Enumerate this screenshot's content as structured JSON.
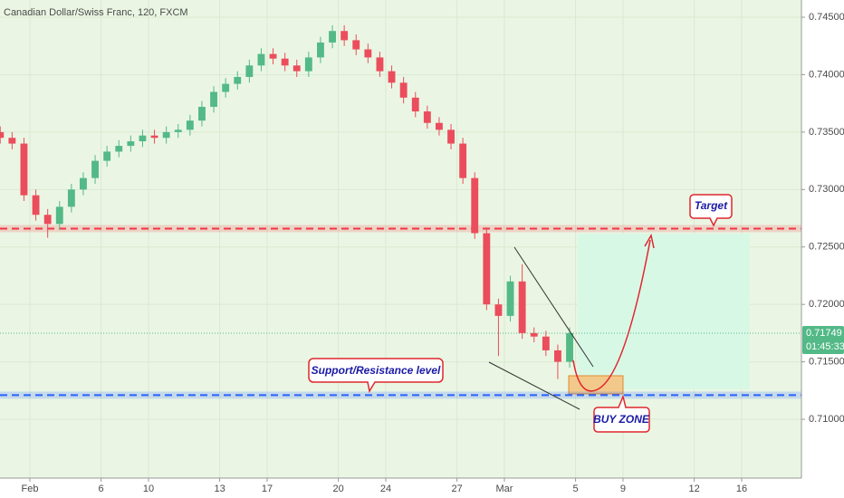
{
  "chart_data": {
    "type": "candlestick",
    "title": "Canadian Dollar/Swiss Franc, 120, FXCM",
    "x": [
      -1.25,
      -0.75,
      -0.25,
      0.25,
      0.75,
      1.25,
      1.75,
      2.25,
      2.75,
      3.25,
      3.75,
      4.25,
      4.75,
      5.25,
      5.75,
      6.25,
      6.75,
      7.25,
      7.75,
      8.25,
      8.75,
      9.25,
      9.75,
      10.25,
      10.75,
      11.25,
      11.75,
      12.25,
      12.75,
      13.25,
      13.75,
      14.25,
      14.75,
      15.25,
      15.75,
      16.25,
      16.75,
      17.25,
      17.75,
      18.25,
      18.75,
      19.25,
      19.75,
      20.25,
      20.75,
      21.25,
      21.75,
      22.25,
      22.75
    ],
    "open": [
      0.735,
      0.7345,
      0.734,
      0.7295,
      0.7278,
      0.727,
      0.7285,
      0.73,
      0.731,
      0.7325,
      0.7333,
      0.7338,
      0.7342,
      0.7347,
      0.7345,
      0.735,
      0.7352,
      0.736,
      0.7372,
      0.7385,
      0.7392,
      0.7398,
      0.7408,
      0.7418,
      0.7414,
      0.7408,
      0.7403,
      0.7415,
      0.7428,
      0.7438,
      0.743,
      0.7422,
      0.7415,
      0.7403,
      0.7393,
      0.738,
      0.7368,
      0.7358,
      0.7352,
      0.734,
      0.731,
      0.7262,
      0.72,
      0.719,
      0.722,
      0.7175,
      0.7172,
      0.716,
      0.715
    ],
    "high": [
      0.7355,
      0.735,
      0.7345,
      0.73,
      0.7283,
      0.729,
      0.7305,
      0.7315,
      0.733,
      0.7338,
      0.7343,
      0.7347,
      0.7352,
      0.7352,
      0.7355,
      0.7357,
      0.7365,
      0.7377,
      0.739,
      0.7397,
      0.7403,
      0.7413,
      0.7423,
      0.7423,
      0.7419,
      0.7413,
      0.742,
      0.7433,
      0.7443,
      0.7443,
      0.7435,
      0.7427,
      0.742,
      0.7408,
      0.7398,
      0.7385,
      0.7373,
      0.7363,
      0.7357,
      0.7345,
      0.7315,
      0.7267,
      0.7205,
      0.7225,
      0.7235,
      0.718,
      0.7177,
      0.7165,
      0.718
    ],
    "low": [
      0.734,
      0.7335,
      0.729,
      0.7273,
      0.7258,
      0.7265,
      0.728,
      0.7295,
      0.7305,
      0.732,
      0.7328,
      0.7333,
      0.7337,
      0.734,
      0.734,
      0.7345,
      0.7347,
      0.7355,
      0.7367,
      0.738,
      0.7387,
      0.7393,
      0.7403,
      0.7409,
      0.7403,
      0.7398,
      0.7398,
      0.741,
      0.7423,
      0.7425,
      0.7417,
      0.741,
      0.7398,
      0.7388,
      0.7375,
      0.7363,
      0.7353,
      0.7347,
      0.7335,
      0.7305,
      0.7257,
      0.7195,
      0.7155,
      0.7185,
      0.717,
      0.7167,
      0.7155,
      0.7135,
      0.7145
    ],
    "close": [
      0.7345,
      0.734,
      0.7295,
      0.7278,
      0.727,
      0.7285,
      0.73,
      0.731,
      0.7325,
      0.7333,
      0.7338,
      0.7342,
      0.7347,
      0.7345,
      0.735,
      0.7352,
      0.736,
      0.7372,
      0.7385,
      0.7392,
      0.7398,
      0.7408,
      0.7418,
      0.7414,
      0.7408,
      0.7403,
      0.7415,
      0.7428,
      0.7438,
      0.743,
      0.7422,
      0.7415,
      0.7403,
      0.7393,
      0.738,
      0.7368,
      0.7358,
      0.7352,
      0.734,
      0.731,
      0.7262,
      0.72,
      0.719,
      0.722,
      0.7175,
      0.7172,
      0.716,
      0.715,
      0.7175
    ],
    "up_color": "#53b987",
    "down_color": "#eb4d5c",
    "xlim": [
      -1.26,
      32.52
    ],
    "xticks": [
      {
        "value": 0,
        "label": "Feb"
      },
      {
        "value": 3,
        "label": "6"
      },
      {
        "value": 5,
        "label": "10"
      },
      {
        "value": 8,
        "label": "13"
      },
      {
        "value": 10,
        "label": "17"
      },
      {
        "value": 13,
        "label": "20"
      },
      {
        "value": 15,
        "label": "24"
      },
      {
        "value": 18,
        "label": "27"
      },
      {
        "value": 20,
        "label": "Mar"
      },
      {
        "value": 23,
        "label": "5"
      },
      {
        "value": 25,
        "label": "9"
      },
      {
        "value": 28,
        "label": "12"
      },
      {
        "value": 30,
        "label": "16"
      }
    ],
    "ylim": [
      0.70488,
      0.7465
    ],
    "yticks": [
      {
        "value": 0.745,
        "label": "0.74500"
      },
      {
        "value": 0.74,
        "label": "0.74000"
      },
      {
        "value": 0.735,
        "label": "0.73500"
      },
      {
        "value": 0.73,
        "label": "0.73000"
      },
      {
        "value": 0.725,
        "label": "0.72500"
      },
      {
        "value": 0.72,
        "label": "0.72000"
      },
      {
        "value": 0.715,
        "label": "0.71500"
      },
      {
        "value": 0.71,
        "label": "0.71000"
      }
    ],
    "grid": true,
    "levels": [
      {
        "value": 0.7266,
        "color": "#f23645"
      },
      {
        "value": 0.7121,
        "color": "#2962ff"
      }
    ],
    "last_price": 0.71749,
    "countdown": "01:45:33",
    "annotations": [
      "Target",
      "Support/Resistance level",
      "BUY ZONE"
    ]
  }
}
